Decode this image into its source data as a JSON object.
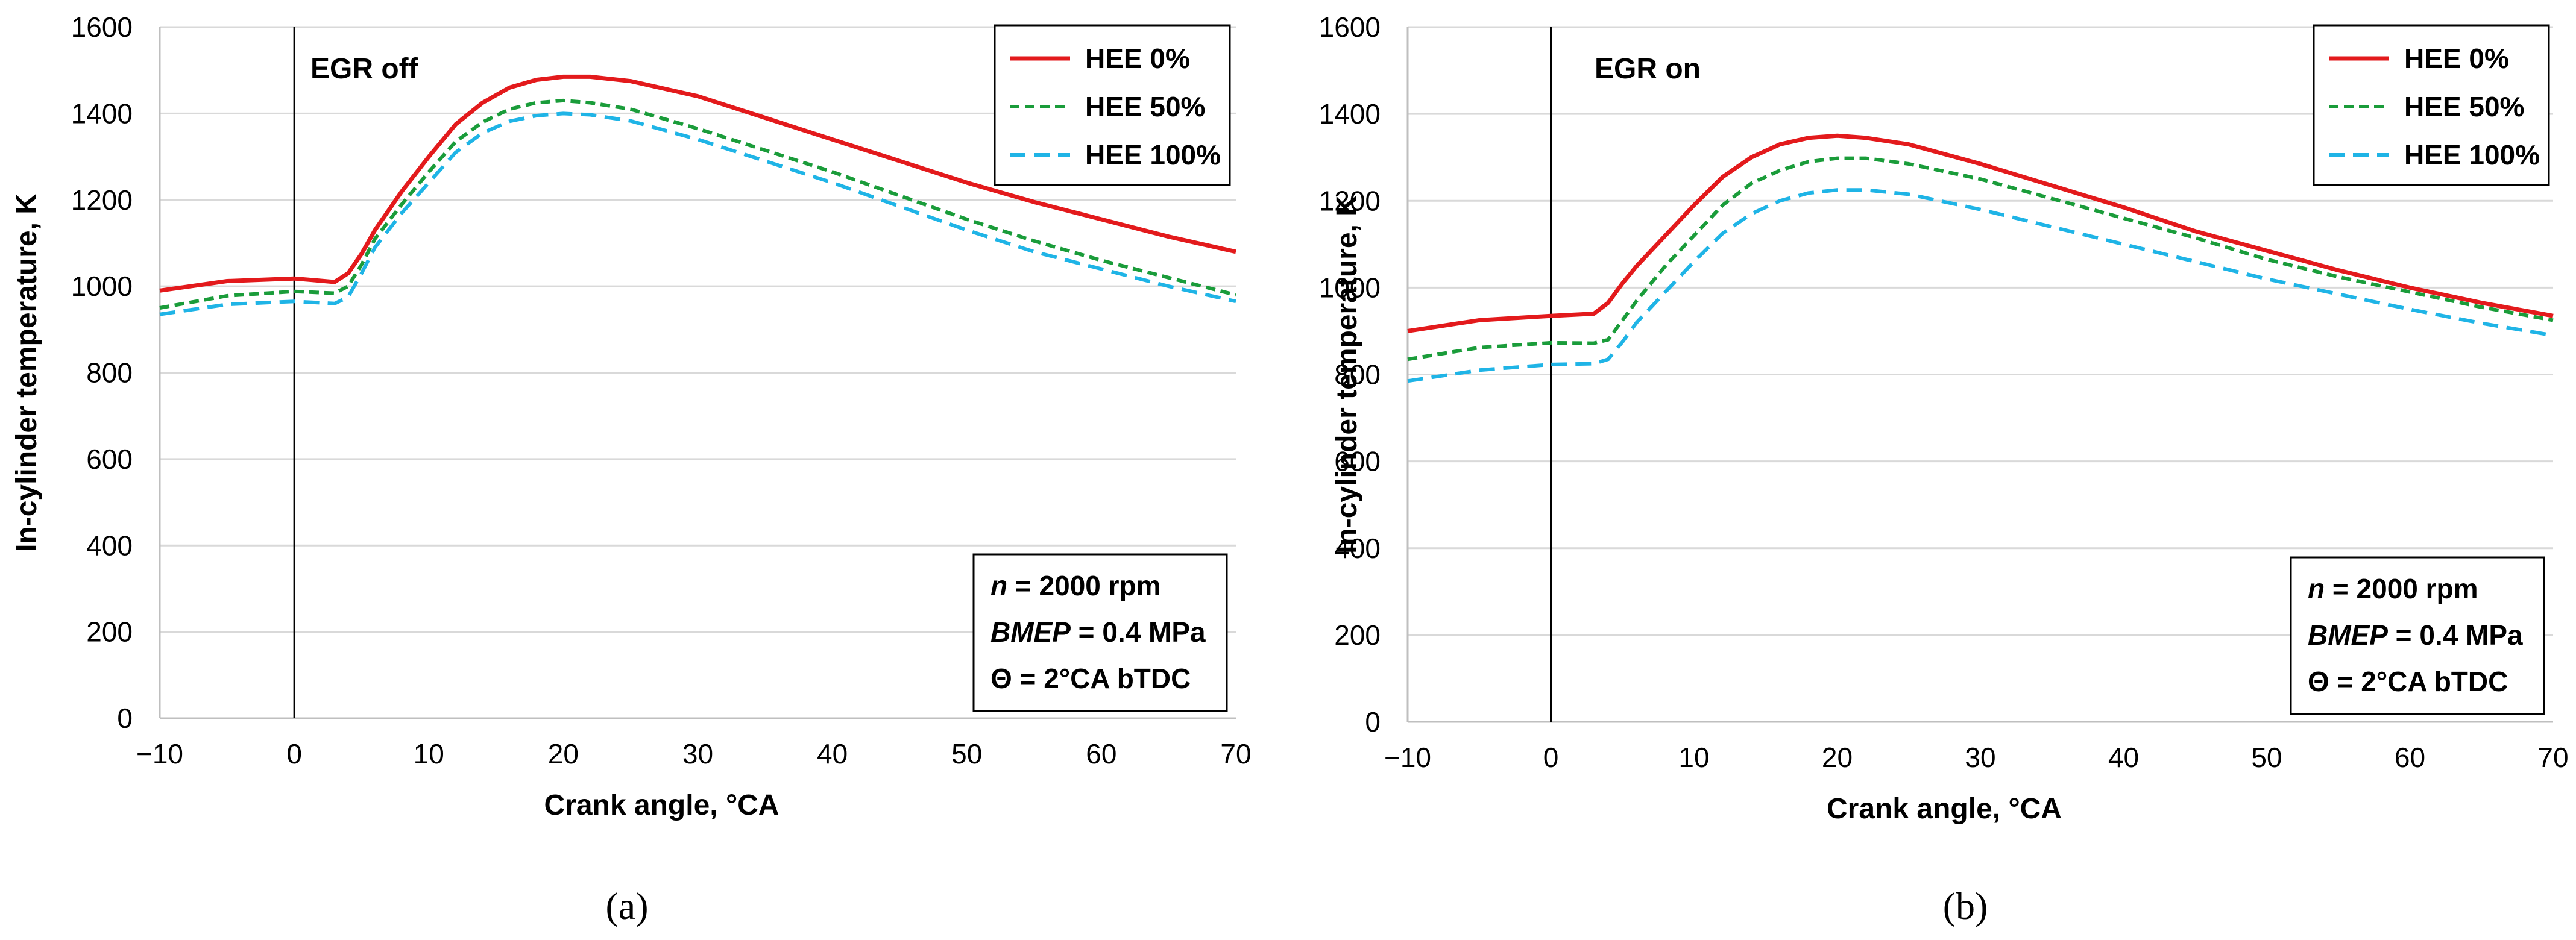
{
  "chart_data": [
    {
      "type": "line",
      "panel_label": "(a)",
      "annotation": "EGR off",
      "xlabel": "Crank angle, °CA",
      "ylabel": "In-cylinder temperature, K",
      "xlim": [
        -10,
        70
      ],
      "ylim": [
        0,
        1600
      ],
      "xticks": [
        -10,
        0,
        10,
        20,
        30,
        40,
        50,
        60,
        70
      ],
      "yticks": [
        0,
        200,
        400,
        600,
        800,
        1000,
        1200,
        1400,
        1600
      ],
      "xtick_labels": [
        "−10",
        "0",
        "10",
        "20",
        "30",
        "40",
        "50",
        "60",
        "70"
      ],
      "ytick_labels": [
        "0",
        "200",
        "400",
        "600",
        "800",
        "1000",
        "1200",
        "1400",
        "1600"
      ],
      "vline_x": 0,
      "grid": "horizontal",
      "legend_position": "top-right",
      "info_box": {
        "n_var": "n",
        "n_value": " = 2000 rpm",
        "bmep_var": "BMEP",
        "bmep_value": " = 0.4 MPa",
        "theta_line": "Θ = 2°CA bTDC"
      },
      "x": [
        -10,
        -5,
        0,
        3,
        4,
        5,
        6,
        8,
        10,
        12,
        14,
        16,
        18,
        20,
        22,
        25,
        30,
        35,
        40,
        45,
        50,
        55,
        60,
        65,
        70
      ],
      "series": [
        {
          "name": "HEE 0%",
          "color": "#e31a1c",
          "style": "solid",
          "values": [
            990,
            1012,
            1018,
            1010,
            1030,
            1075,
            1130,
            1220,
            1300,
            1375,
            1425,
            1460,
            1478,
            1485,
            1485,
            1475,
            1440,
            1390,
            1340,
            1290,
            1240,
            1195,
            1155,
            1115,
            1080
          ]
        },
        {
          "name": "HEE 50%",
          "color": "#1a9c3a",
          "style": "dashed",
          "values": [
            950,
            978,
            988,
            984,
            1000,
            1050,
            1110,
            1190,
            1265,
            1335,
            1380,
            1410,
            1425,
            1430,
            1425,
            1410,
            1365,
            1315,
            1265,
            1210,
            1155,
            1105,
            1060,
            1020,
            980
          ]
        },
        {
          "name": "HEE 100%",
          "color": "#1fb4e6",
          "style": "dashed",
          "values": [
            935,
            958,
            965,
            960,
            975,
            1030,
            1090,
            1170,
            1240,
            1310,
            1355,
            1382,
            1395,
            1400,
            1397,
            1383,
            1340,
            1290,
            1240,
            1185,
            1130,
            1080,
            1040,
            1000,
            965
          ]
        }
      ]
    },
    {
      "type": "line",
      "panel_label": "(b)",
      "annotation": "EGR on",
      "xlabel": "Crank angle, °CA",
      "ylabel": "In-cylinder temperature, K",
      "xlim": [
        -10,
        70
      ],
      "ylim": [
        0,
        1600
      ],
      "xticks": [
        -10,
        0,
        10,
        20,
        30,
        40,
        50,
        60,
        70
      ],
      "yticks": [
        0,
        200,
        400,
        600,
        800,
        1000,
        1200,
        1400,
        1600
      ],
      "xtick_labels": [
        "−10",
        "0",
        "10",
        "20",
        "30",
        "40",
        "50",
        "60",
        "70"
      ],
      "ytick_labels": [
        "0",
        "200",
        "400",
        "600",
        "800",
        "1000",
        "1200",
        "1400",
        "1600"
      ],
      "vline_x": 0,
      "grid": "horizontal",
      "legend_position": "top-right",
      "info_box": {
        "n_var": "n",
        "n_value": " = 2000 rpm",
        "bmep_var": "BMEP",
        "bmep_value": " = 0.4 MPa",
        "theta_line": "Θ = 2°CA bTDC"
      },
      "x": [
        -10,
        -5,
        0,
        3,
        4,
        5,
        6,
        8,
        10,
        12,
        14,
        16,
        18,
        20,
        22,
        25,
        30,
        35,
        40,
        45,
        50,
        55,
        60,
        65,
        70
      ],
      "series": [
        {
          "name": "HEE 0%",
          "color": "#e31a1c",
          "style": "solid",
          "values": [
            900,
            925,
            935,
            940,
            965,
            1010,
            1050,
            1120,
            1190,
            1255,
            1300,
            1330,
            1345,
            1350,
            1345,
            1330,
            1285,
            1235,
            1185,
            1130,
            1085,
            1040,
            1000,
            965,
            935
          ]
        },
        {
          "name": "HEE 50%",
          "color": "#1a9c3a",
          "style": "dashed",
          "values": [
            835,
            862,
            873,
            872,
            880,
            925,
            970,
            1050,
            1120,
            1190,
            1240,
            1270,
            1290,
            1298,
            1298,
            1285,
            1250,
            1205,
            1160,
            1115,
            1065,
            1025,
            990,
            955,
            925
          ]
        },
        {
          "name": "HEE 100%",
          "color": "#1fb4e6",
          "style": "dashed",
          "values": [
            785,
            810,
            823,
            825,
            835,
            875,
            920,
            990,
            1060,
            1125,
            1170,
            1200,
            1218,
            1225,
            1225,
            1215,
            1180,
            1140,
            1100,
            1060,
            1020,
            985,
            950,
            918,
            890
          ]
        }
      ]
    }
  ]
}
